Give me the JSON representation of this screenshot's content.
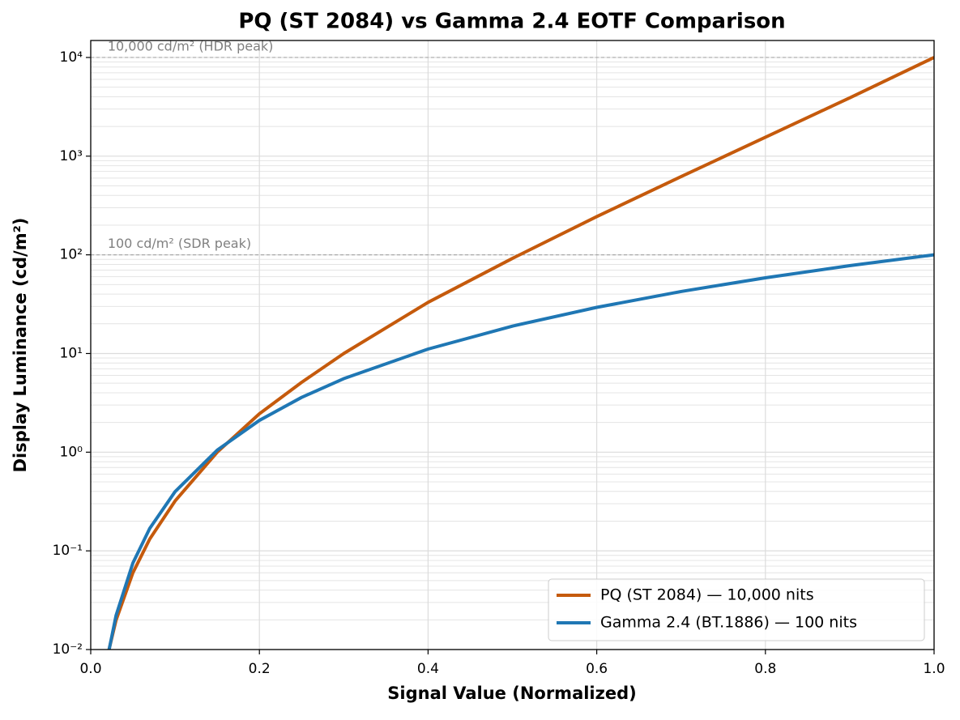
{
  "chart_data": {
    "type": "line",
    "title": "PQ (ST 2084) vs Gamma 2.4 EOTF Comparison",
    "x_label": "Signal Value (Normalized)",
    "y_label": "Display Luminance (cd/m²)",
    "x": [
      0.02,
      0.03,
      0.05,
      0.07,
      0.1,
      0.15,
      0.2,
      0.25,
      0.3,
      0.4,
      0.5,
      0.6,
      0.7,
      0.8,
      0.9,
      1.0
    ],
    "series": [
      {
        "name": "PQ (ST 2084) — 10,000 nits",
        "color": "#c55a0c",
        "values": [
          0.0087,
          0.0198,
          0.06,
          0.132,
          0.32,
          1.0,
          2.45,
          5.1,
          10.0,
          33,
          92,
          244,
          620,
          1555,
          3900,
          10000
        ]
      },
      {
        "name": "Gamma 2.4 (BT.1886) — 100 nits",
        "color": "#1f77b4",
        "values": [
          0.0084,
          0.0221,
          0.0753,
          0.169,
          0.398,
          1.05,
          2.1,
          3.59,
          5.56,
          11.09,
          18.95,
          29.35,
          42.49,
          58.53,
          77.66,
          100
        ]
      }
    ],
    "xlim": [
      0,
      1
    ],
    "xticks": [
      {
        "value": 0,
        "label": "0.0"
      },
      0.2,
      0.4,
      0.6,
      0.8,
      {
        "value": 1,
        "label": "1.0"
      }
    ],
    "ylim": [
      0.01,
      14860
    ],
    "yticks": [
      {
        "value": 0.01,
        "label": "10⁻²"
      },
      {
        "value": 0.1,
        "label": "10⁻¹"
      },
      {
        "value": 1,
        "label": "10⁰"
      },
      {
        "value": 10,
        "label": "10¹"
      },
      {
        "value": 100,
        "label": "10²"
      },
      {
        "value": 1000,
        "label": "10³"
      },
      {
        "value": 10000,
        "label": "10⁴"
      }
    ],
    "y_scale": "log",
    "grid": true,
    "reference_lines": [
      {
        "value": 10000,
        "label": "10,000 cd/m² (HDR peak)"
      },
      {
        "value": 100,
        "label": "100 cd/m² (SDR peak)"
      }
    ],
    "legend": "lower right"
  }
}
